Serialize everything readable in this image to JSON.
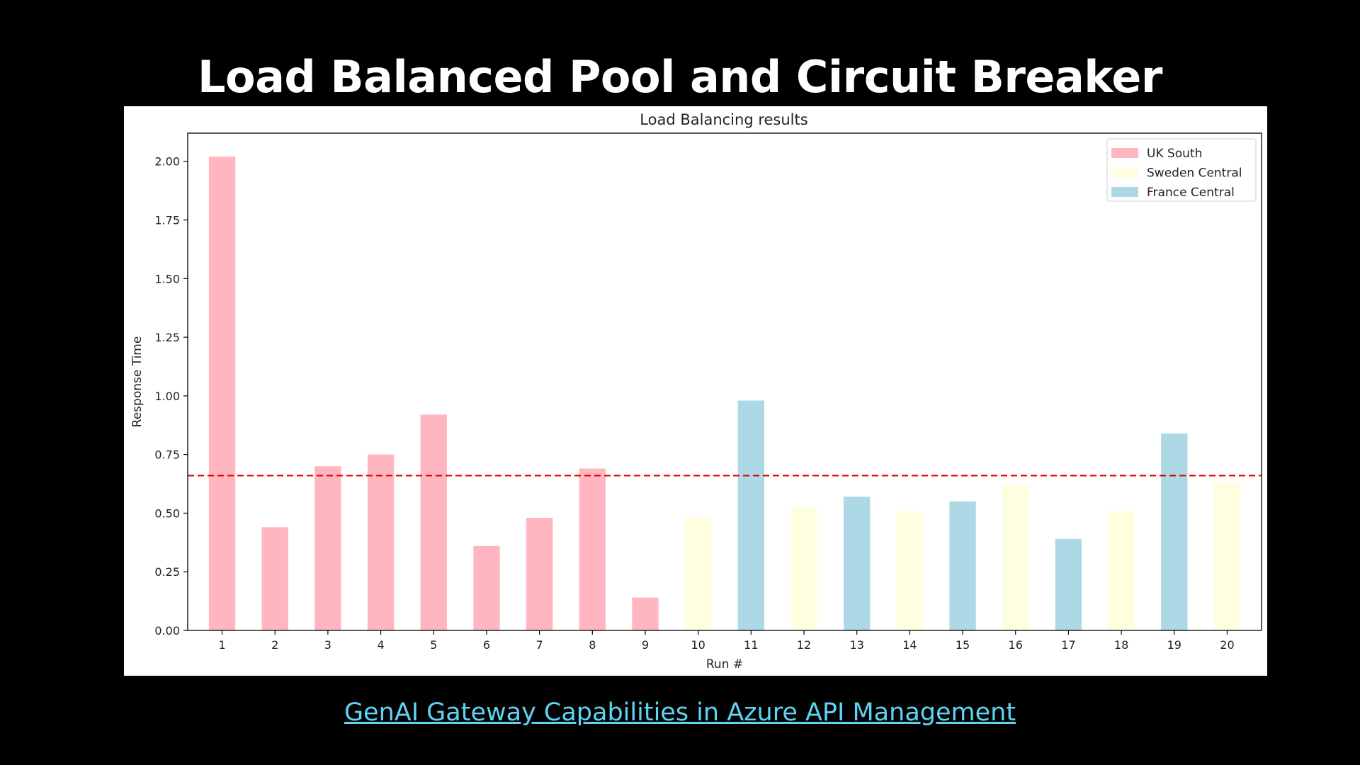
{
  "slide": {
    "title": "Load Balanced Pool and Circuit Breaker",
    "link_text": "GenAI Gateway Capabilities in Azure API Management"
  },
  "chart_data": {
    "type": "bar",
    "title": "Load Balancing results",
    "xlabel": "Run #",
    "ylabel": "Response Time",
    "categories": [
      "1",
      "2",
      "3",
      "4",
      "5",
      "6",
      "7",
      "8",
      "9",
      "10",
      "11",
      "12",
      "13",
      "14",
      "15",
      "16",
      "17",
      "18",
      "19",
      "20"
    ],
    "values": [
      2.02,
      0.44,
      0.7,
      0.75,
      0.92,
      0.36,
      0.48,
      0.69,
      0.14,
      0.48,
      0.98,
      0.53,
      0.57,
      0.51,
      0.55,
      0.62,
      0.39,
      0.51,
      0.84,
      0.63
    ],
    "bar_series": [
      "UK South",
      "UK South",
      "UK South",
      "UK South",
      "UK South",
      "UK South",
      "UK South",
      "UK South",
      "UK South",
      "Sweden Central",
      "France Central",
      "Sweden Central",
      "France Central",
      "Sweden Central",
      "France Central",
      "Sweden Central",
      "France Central",
      "Sweden Central",
      "France Central",
      "Sweden Central"
    ],
    "legend": [
      {
        "name": "UK South",
        "color": "#ffb6c1"
      },
      {
        "name": "Sweden Central",
        "color": "#ffffe0"
      },
      {
        "name": "France Central",
        "color": "#add8e6"
      }
    ],
    "legend_position": "top-right",
    "yticks": [
      "0.00",
      "0.25",
      "0.50",
      "0.75",
      "1.00",
      "1.25",
      "1.50",
      "1.75",
      "2.00"
    ],
    "ylim": [
      0,
      2.12
    ],
    "reference_line": {
      "value": 0.66,
      "color": "#e00000",
      "style": "dashed"
    },
    "grid": false
  }
}
